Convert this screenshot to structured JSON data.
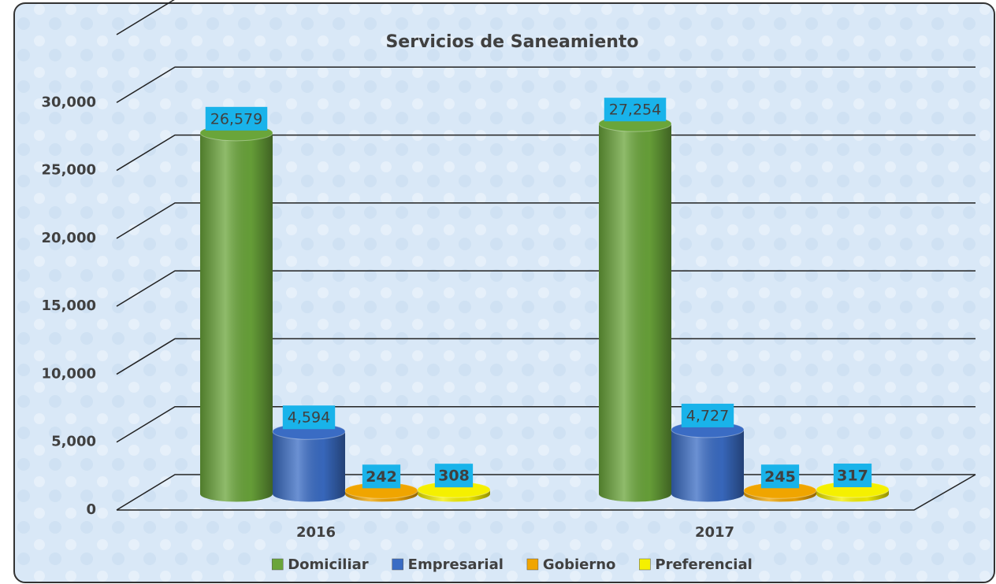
{
  "chart_data": {
    "type": "bar3d",
    "title": "Servicios de Saneamiento",
    "categories": [
      "2016",
      "2017"
    ],
    "series": [
      {
        "name": "Domiciliar",
        "color": "#6aa53a",
        "values": [
          26579,
          27254
        ],
        "value_labels": [
          "26,579",
          "27,254"
        ]
      },
      {
        "name": "Empresarial",
        "color": "#3a6cc4",
        "values": [
          4594,
          4727
        ],
        "value_labels": [
          "4,594",
          "4,727"
        ]
      },
      {
        "name": "Gobierno",
        "color": "#f0a500",
        "values": [
          242,
          245
        ]
      },
      {
        "name": "Preferencial",
        "color": "#f5f000",
        "values": [
          308,
          317
        ]
      }
    ],
    "ylim": [
      0,
      35000
    ],
    "yticks": [
      0,
      {
        "value": 5000,
        "label": "5,000"
      },
      {
        "value": 10000,
        "label": "10,000"
      },
      {
        "value": 15000,
        "label": "15,000"
      },
      {
        "value": 20000,
        "label": "20,000"
      },
      {
        "value": 25000,
        "label": "25,000"
      },
      {
        "value": 30000,
        "label": "30,000"
      }
    ],
    "grid": true,
    "legend": "bottom"
  }
}
